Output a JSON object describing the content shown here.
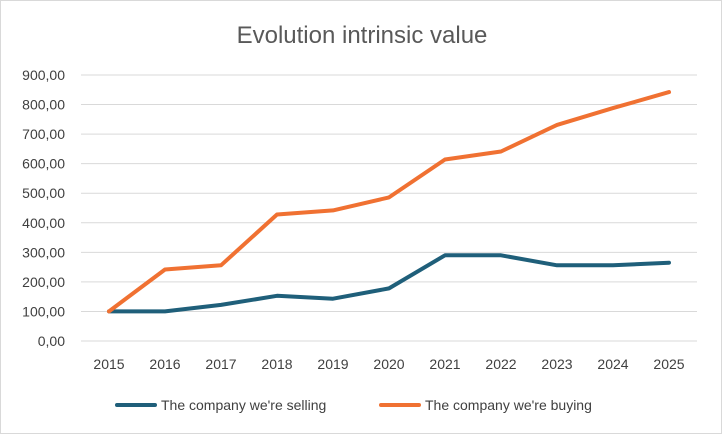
{
  "chart_data": {
    "type": "line",
    "title": "Evolution intrinsic value",
    "xlabel": "",
    "ylabel": "",
    "categories": [
      "2015",
      "2016",
      "2017",
      "2018",
      "2019",
      "2020",
      "2021",
      "2022",
      "2023",
      "2024",
      "2025"
    ],
    "ylim": [
      0,
      900
    ],
    "yticks": [
      0,
      100,
      200,
      300,
      400,
      500,
      600,
      700,
      800,
      900
    ],
    "ytick_labels": [
      "0,00",
      "100,00",
      "200,00",
      "300,00",
      "400,00",
      "500,00",
      "600,00",
      "700,00",
      "800,00",
      "900,00"
    ],
    "grid": true,
    "legend_position": "bottom",
    "series": [
      {
        "name": "The company we're selling",
        "color": "#1f5f7a",
        "values": [
          100,
          100,
          122,
          153,
          143,
          178,
          290,
          290,
          256,
          256,
          265
        ]
      },
      {
        "name": "The company we're buying",
        "color": "#f07132",
        "values": [
          100,
          242,
          256,
          428,
          442,
          486,
          614,
          641,
          731,
          788,
          842
        ]
      }
    ]
  }
}
